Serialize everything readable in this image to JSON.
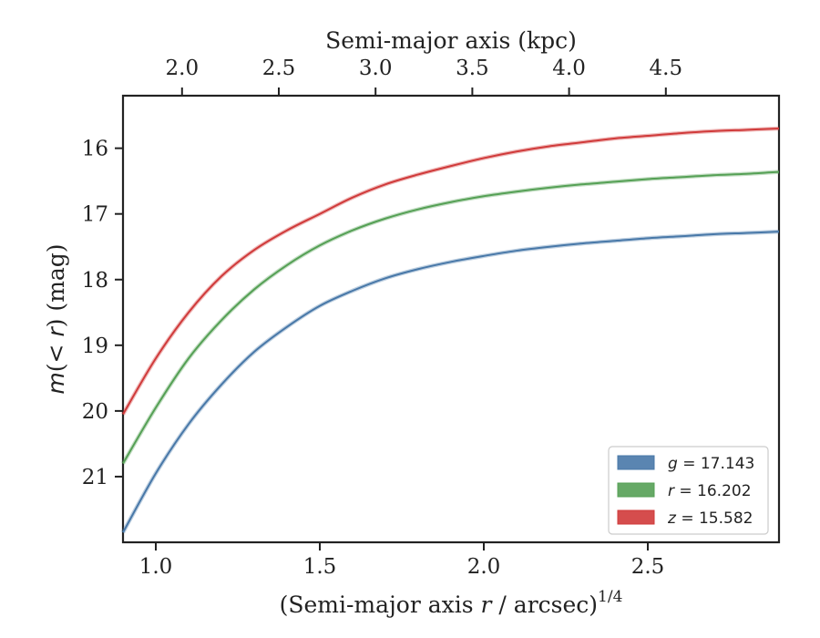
{
  "chart_data": {
    "type": "line",
    "xlabel_prefix": "(Semi-major axis ",
    "xlabel_var": "r",
    "xlabel_suffix": " / arcsec)",
    "xlabel_sup": "1/4",
    "ylabel_prefix": "m",
    "ylabel_mid": "(< ",
    "ylabel_var": "r",
    "ylabel_suffix": ") (mag)",
    "top_xlabel": "Semi-major axis (kpc)",
    "xlim": [
      0.9,
      2.9
    ],
    "ylim": [
      22.0,
      15.2
    ],
    "y_inverted": true,
    "xticks": [
      1.0,
      1.5,
      2.0,
      2.5
    ],
    "xtick_labels": [
      "1.0",
      "1.5",
      "2.0",
      "2.5"
    ],
    "yticks": [
      16,
      17,
      18,
      19,
      20,
      21
    ],
    "ytick_labels": [
      "16",
      "17",
      "18",
      "19",
      "20",
      "21"
    ],
    "top_xticks_kpc": [
      2.0,
      2.5,
      3.0,
      3.5,
      4.0,
      4.5
    ],
    "top_xtick_labels": [
      "2.0",
      "2.5",
      "3.0",
      "3.5",
      "4.0",
      "4.5"
    ],
    "top_axis_map": {
      "x_at_kpc2": 1.08,
      "x_per_kpc": 0.59
    },
    "legend_position": "lower-right",
    "series": [
      {
        "name": "g",
        "label_var": "g",
        "label_value": " = 17.143",
        "color": "#4878a8",
        "x": [
          0.9,
          1.0,
          1.1,
          1.2,
          1.3,
          1.4,
          1.5,
          1.6,
          1.7,
          1.8,
          1.9,
          2.0,
          2.1,
          2.2,
          2.3,
          2.4,
          2.5,
          2.6,
          2.7,
          2.8,
          2.9
        ],
        "y": [
          21.85,
          20.95,
          20.2,
          19.6,
          19.1,
          18.72,
          18.4,
          18.17,
          17.98,
          17.84,
          17.73,
          17.64,
          17.56,
          17.5,
          17.45,
          17.41,
          17.37,
          17.34,
          17.31,
          17.29,
          17.27
        ]
      },
      {
        "name": "r",
        "label_var": "r",
        "label_value": " = 16.202",
        "color": "#55a055",
        "x": [
          0.9,
          1.0,
          1.1,
          1.2,
          1.3,
          1.4,
          1.5,
          1.6,
          1.7,
          1.8,
          1.9,
          2.0,
          2.1,
          2.2,
          2.3,
          2.4,
          2.5,
          2.6,
          2.7,
          2.8,
          2.9
        ],
        "y": [
          20.8,
          19.95,
          19.2,
          18.62,
          18.15,
          17.78,
          17.48,
          17.25,
          17.07,
          16.93,
          16.82,
          16.73,
          16.66,
          16.6,
          16.55,
          16.51,
          16.47,
          16.44,
          16.41,
          16.39,
          16.36
        ]
      },
      {
        "name": "z",
        "label_var": "z",
        "label_value": " = 15.582",
        "color": "#d03a3a",
        "x": [
          0.9,
          1.0,
          1.1,
          1.2,
          1.3,
          1.4,
          1.5,
          1.6,
          1.7,
          1.8,
          1.9,
          2.0,
          2.1,
          2.2,
          2.3,
          2.4,
          2.5,
          2.6,
          2.7,
          2.8,
          2.9
        ],
        "y": [
          20.05,
          19.2,
          18.5,
          17.95,
          17.55,
          17.25,
          17.0,
          16.75,
          16.55,
          16.4,
          16.27,
          16.15,
          16.05,
          15.97,
          15.91,
          15.85,
          15.81,
          15.77,
          15.74,
          15.72,
          15.7
        ]
      }
    ]
  }
}
